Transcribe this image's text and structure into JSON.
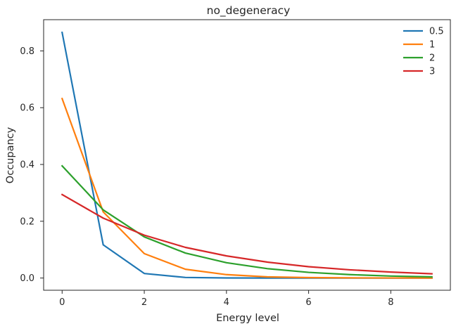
{
  "chart_data": {
    "type": "line",
    "title": "no_degeneracy",
    "xlabel": "Energy level",
    "ylabel": "Occupancy",
    "x": [
      0,
      1,
      2,
      3,
      4,
      5,
      6,
      7,
      8,
      9
    ],
    "xlim": [
      -0.45,
      9.45
    ],
    "ylim": [
      -0.043,
      0.91
    ],
    "xticks": [
      0,
      2,
      4,
      6,
      8
    ],
    "xtick_labels": [
      "0",
      "2",
      "4",
      "6",
      "8"
    ],
    "yticks": [
      0.0,
      0.2,
      0.4,
      0.6,
      0.8
    ],
    "ytick_labels": [
      "0.0",
      "0.2",
      "0.4",
      "0.6",
      "0.8"
    ],
    "grid": false,
    "legend_position": "top-right",
    "series": [
      {
        "name": "0.5",
        "color": "#1f77b4",
        "values": [
          0.865,
          0.117,
          0.016,
          0.002,
          0.0003,
          4e-05,
          0.0,
          0.0,
          0.0,
          0.0
        ]
      },
      {
        "name": "1",
        "color": "#ff7f0e",
        "values": [
          0.632,
          0.233,
          0.086,
          0.031,
          0.012,
          0.004,
          0.0016,
          0.0006,
          0.0002,
          0.0001
        ]
      },
      {
        "name": "2",
        "color": "#2ca02c",
        "values": [
          0.395,
          0.24,
          0.145,
          0.088,
          0.054,
          0.033,
          0.02,
          0.012,
          0.007,
          0.004
        ]
      },
      {
        "name": "3",
        "color": "#d62728",
        "values": [
          0.294,
          0.211,
          0.151,
          0.108,
          0.078,
          0.056,
          0.04,
          0.029,
          0.021,
          0.015
        ]
      }
    ]
  }
}
